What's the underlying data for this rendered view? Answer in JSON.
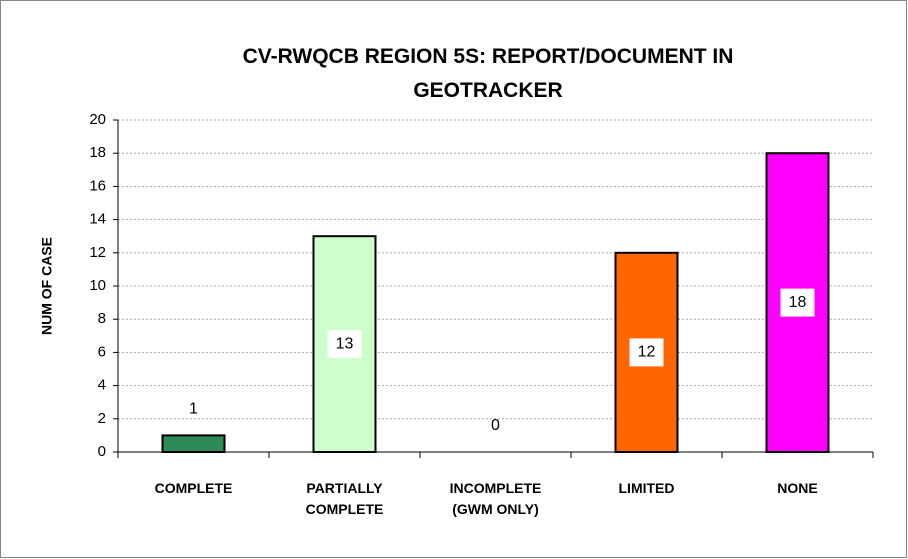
{
  "chart_data": {
    "type": "bar",
    "title": "CV-RWQCB REGION 5S: REPORT/DOCUMENT IN GEOTRACKER",
    "y_label": "NUM OF CASE",
    "categories": [
      "COMPLETE",
      "PARTIALLY COMPLETE",
      "INCOMPLETE (GWM ONLY)",
      "LIMITED",
      "NONE"
    ],
    "values": [
      1,
      13,
      0,
      12,
      18
    ],
    "colors": [
      "#2e8b57",
      "#ccffcc",
      null,
      "#ff6600",
      "#ff00ff"
    ],
    "ylim": [
      0,
      20
    ],
    "yticks": [
      0,
      2,
      4,
      6,
      8,
      10,
      12,
      14,
      16,
      18,
      20
    ],
    "grid": true
  }
}
